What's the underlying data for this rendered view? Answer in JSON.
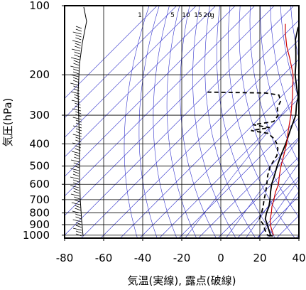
{
  "chart_data": {
    "type": "line",
    "subtype": "skew-T log-P thermodynamic diagram",
    "xlabel": "気温(実線), 露点(破線)",
    "ylabel": "気圧(hPa)",
    "xlim": [
      -80,
      40
    ],
    "ylim": [
      1030,
      100
    ],
    "y_scale": "log",
    "x_ticks": [
      "-80",
      "-60",
      "-40",
      "-20",
      "0",
      "20",
      "40"
    ],
    "x_tick_values": [
      -80,
      -60,
      -40,
      -20,
      0,
      20,
      40
    ],
    "y_ticks": [
      "100",
      "200",
      "300",
      "400",
      "500",
      "600",
      "700",
      "800",
      "900",
      "1000"
    ],
    "y_tick_values": [
      100,
      200,
      300,
      400,
      500,
      600,
      700,
      800,
      900,
      1000
    ],
    "mixing_ratio_labels": [
      "1",
      "5",
      "10",
      "15",
      "20",
      "g"
    ],
    "mixing_ratio_values": [
      1,
      5,
      10,
      15,
      20
    ],
    "grid": true,
    "colors": {
      "temperature": "#000000",
      "dewpoint": "#000000",
      "parcel": "#cc0000",
      "background_lines": "#3333cc"
    },
    "series": [
      {
        "key": "temperature",
        "style": "solid",
        "points": [
          {
            "p": 1010,
            "t": 27.0
          },
          {
            "p": 1000,
            "t": 25.5
          },
          {
            "p": 950,
            "t": 22.0
          },
          {
            "p": 900,
            "t": 18.5
          },
          {
            "p": 850,
            "t": 14.5
          },
          {
            "p": 800,
            "t": 12.0
          },
          {
            "p": 750,
            "t": 10.0
          },
          {
            "p": 700,
            "t": 7.0
          },
          {
            "p": 650,
            "t": 3.5
          },
          {
            "p": 600,
            "t": 0.0
          },
          {
            "p": 550,
            "t": -3.0
          },
          {
            "p": 500,
            "t": -6.5
          },
          {
            "p": 450,
            "t": -10.0
          },
          {
            "p": 400,
            "t": -13.5
          },
          {
            "p": 350,
            "t": -18.0
          },
          {
            "p": 300,
            "t": -23.0
          },
          {
            "p": 270,
            "t": -28.0
          },
          {
            "p": 250,
            "t": -31.0
          },
          {
            "p": 230,
            "t": -36.0
          },
          {
            "p": 200,
            "t": -44.0
          },
          {
            "p": 180,
            "t": -49.0
          },
          {
            "p": 160,
            "t": -55.0
          },
          {
            "p": 140,
            "t": -62.0
          },
          {
            "p": 125,
            "t": -66.5
          },
          {
            "p": 115,
            "t": -68.0
          },
          {
            "p": 105,
            "t": -70.0
          },
          {
            "p": 100,
            "t": -70.5
          }
        ]
      },
      {
        "key": "dewpoint",
        "style": "dashed",
        "points": [
          {
            "p": 1010,
            "t": 26.0
          },
          {
            "p": 1000,
            "t": 24.0
          },
          {
            "p": 950,
            "t": 20.0
          },
          {
            "p": 900,
            "t": 16.5
          },
          {
            "p": 850,
            "t": 11.5
          },
          {
            "p": 800,
            "t": 9.5
          },
          {
            "p": 750,
            "t": 7.0
          },
          {
            "p": 700,
            "t": 4.0
          },
          {
            "p": 650,
            "t": 1.0
          },
          {
            "p": 600,
            "t": -2.5
          },
          {
            "p": 550,
            "t": -6.5
          },
          {
            "p": 500,
            "t": -10.0
          },
          {
            "p": 450,
            "t": -12.0
          },
          {
            "p": 420,
            "t": -15.0
          },
          {
            "p": 400,
            "t": -18.0
          },
          {
            "p": 380,
            "t": -22.0
          },
          {
            "p": 360,
            "t": -28.0
          },
          {
            "p": 350,
            "t": -38.0
          },
          {
            "p": 340,
            "t": -30.0
          },
          {
            "p": 330,
            "t": -40.0
          },
          {
            "p": 320,
            "t": -31.0
          },
          {
            "p": 300,
            "t": -32.0
          },
          {
            "p": 280,
            "t": -36.0
          },
          {
            "p": 260,
            "t": -38.0
          },
          {
            "p": 245,
            "t": -42.0
          },
          {
            "p": 240,
            "t": -50.0
          },
          {
            "p": 238,
            "t": -80.0
          }
        ]
      },
      {
        "key": "parcel",
        "style": "solid",
        "points": [
          {
            "p": 1000,
            "t": 27.0
          },
          {
            "p": 950,
            "t": 23.5
          },
          {
            "p": 900,
            "t": 20.0
          },
          {
            "p": 850,
            "t": 17.0
          },
          {
            "p": 800,
            "t": 14.5
          },
          {
            "p": 750,
            "t": 11.5
          },
          {
            "p": 700,
            "t": 9.0
          },
          {
            "p": 650,
            "t": 6.0
          },
          {
            "p": 600,
            "t": 3.5
          },
          {
            "p": 550,
            "t": -0.5
          },
          {
            "p": 500,
            "t": -4.5
          },
          {
            "p": 450,
            "t": -8.5
          },
          {
            "p": 400,
            "t": -13.0
          },
          {
            "p": 350,
            "t": -19.0
          },
          {
            "p": 300,
            "t": -25.5
          },
          {
            "p": 250,
            "t": -34.0
          },
          {
            "p": 200,
            "t": -45.0
          },
          {
            "p": 170,
            "t": -55.0
          },
          {
            "p": 150,
            "t": -63.0
          },
          {
            "p": 130,
            "t": -71.0
          },
          {
            "p": 120,
            "t": -75.0
          }
        ]
      }
    ]
  }
}
